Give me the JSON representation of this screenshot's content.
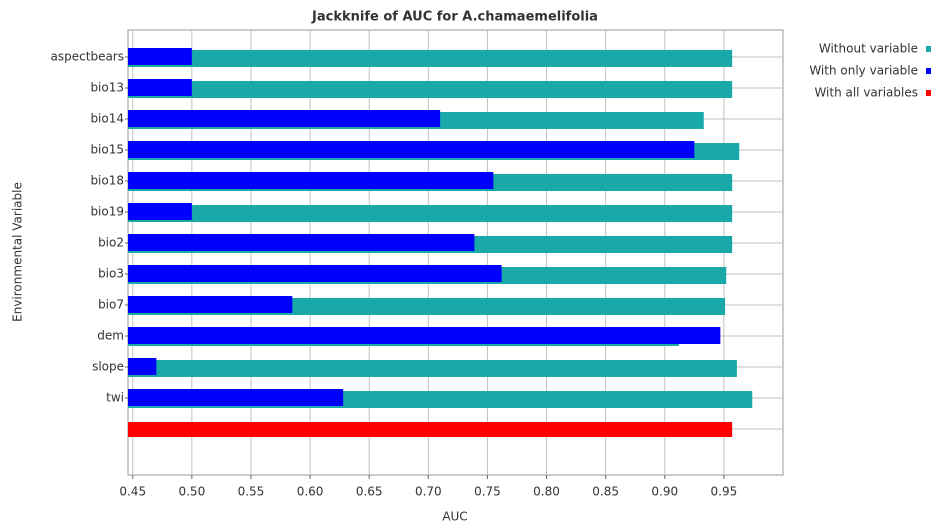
{
  "chart_data": {
    "type": "bar",
    "orientation": "horizontal",
    "title": "Jackknife of AUC for A.chamaemelifolia",
    "x_label": "AUC",
    "y_label": "Environmental Variable",
    "categories": [
      "aspectbears",
      "bio13",
      "bio14",
      "bio15",
      "bio18",
      "bio19",
      "bio2",
      "bio3",
      "bio7",
      "dem",
      "slope",
      "twi",
      null
    ],
    "series": [
      {
        "name": "Without variable",
        "color": "#1aa9a9",
        "values": [
          0.957,
          0.957,
          0.933,
          0.963,
          0.957,
          0.957,
          0.957,
          0.952,
          0.951,
          0.912,
          0.961,
          0.974,
          null
        ]
      },
      {
        "name": "With only variable",
        "color": "#0000ff",
        "values": [
          0.5,
          0.5,
          0.71,
          0.925,
          0.755,
          0.5,
          0.739,
          0.762,
          0.585,
          0.947,
          0.47,
          0.628,
          null
        ]
      },
      {
        "name": "With all variables",
        "color": "#ff0000",
        "values": [
          null,
          null,
          null,
          null,
          null,
          null,
          null,
          null,
          null,
          null,
          null,
          null,
          0.957
        ]
      }
    ],
    "xlim": [
      0.446,
      1.0
    ],
    "xticks": [
      0.45,
      {
        "value": 0.5,
        "label": "0.50"
      },
      0.55,
      {
        "value": 0.6,
        "label": "0.60"
      },
      0.65,
      {
        "value": 0.7,
        "label": "0.70"
      },
      0.75,
      {
        "value": 0.8,
        "label": "0.80"
      },
      0.85,
      {
        "value": 0.9,
        "label": "0.90"
      },
      0.95
    ],
    "grid": true,
    "legend": "right"
  }
}
